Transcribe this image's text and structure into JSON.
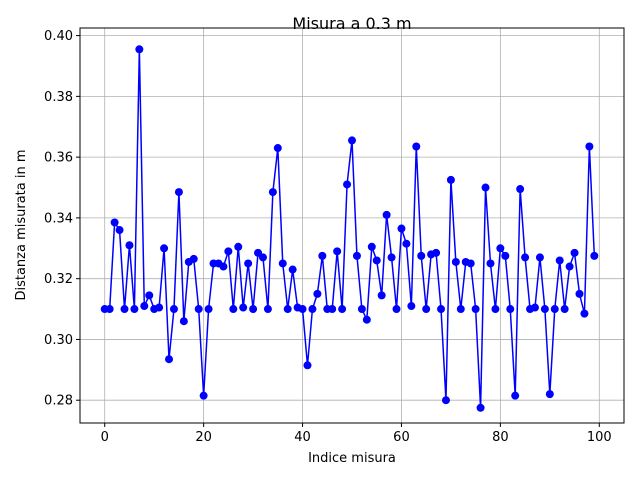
{
  "chart_data": {
    "type": "line",
    "title": "Misura a 0.3 m",
    "xlabel": "Indice misura",
    "ylabel": "Distanza misurata in m",
    "xlim": [
      -5,
      105
    ],
    "ylim": [
      0.2725,
      0.4025
    ],
    "xticks": [
      0,
      20,
      40,
      60,
      80,
      100
    ],
    "xtick_labels": [
      "0",
      "20",
      "40",
      "60",
      "80",
      "100"
    ],
    "yticks": [
      0.28,
      0.3,
      0.32,
      0.34,
      0.36,
      0.38,
      0.4
    ],
    "ytick_labels": [
      "0.28",
      "0.30",
      "0.32",
      "0.34",
      "0.36",
      "0.38",
      "0.40"
    ],
    "grid": true,
    "line_color": "#0000ff",
    "marker": "circle",
    "series": [
      {
        "x": [
          0,
          1,
          2,
          3,
          4,
          5,
          6,
          7,
          8,
          9,
          10,
          11,
          12,
          13,
          14,
          15,
          16,
          17,
          18,
          19,
          20,
          21,
          22,
          23,
          24,
          25,
          26,
          27,
          28,
          29,
          30,
          31,
          32,
          33,
          34,
          35,
          36,
          37,
          38,
          39,
          40,
          41,
          42,
          43,
          44,
          45,
          46,
          47,
          48,
          49,
          50,
          51,
          52,
          53,
          54,
          55,
          56,
          57,
          58,
          59,
          60,
          61,
          62,
          63,
          64,
          65,
          66,
          67,
          68,
          69,
          70,
          71,
          72,
          73,
          74,
          75,
          76,
          77,
          78,
          79,
          80,
          81,
          82,
          83,
          84,
          85,
          86,
          87,
          88,
          89,
          90,
          91,
          92,
          93,
          94,
          95,
          96,
          97,
          98,
          99
        ],
        "values": [
          0.31,
          0.31,
          0.3385,
          0.336,
          0.31,
          0.331,
          0.31,
          0.3955,
          0.311,
          0.3145,
          0.31,
          0.3105,
          0.33,
          0.2935,
          0.31,
          0.3485,
          0.306,
          0.3255,
          0.3265,
          0.31,
          0.2815,
          0.31,
          0.325,
          0.325,
          0.324,
          0.329,
          0.31,
          0.3305,
          0.3105,
          0.325,
          0.31,
          0.3285,
          0.327,
          0.31,
          0.3485,
          0.363,
          0.325,
          0.31,
          0.323,
          0.3105,
          0.31,
          0.2915,
          0.31,
          0.315,
          0.3275,
          0.31,
          0.31,
          0.329,
          0.31,
          0.351,
          0.3655,
          0.3275,
          0.31,
          0.3065,
          0.3305,
          0.326,
          0.3145,
          0.341,
          0.327,
          0.31,
          0.3365,
          0.3315,
          0.311,
          0.3635,
          0.3275,
          0.31,
          0.328,
          0.3285,
          0.31,
          0.28,
          0.3525,
          0.3255,
          0.31,
          0.3255,
          0.325,
          0.31,
          0.2775,
          0.35,
          0.325,
          0.31,
          0.33,
          0.3275,
          0.31,
          0.2815,
          0.3495,
          0.327,
          0.31,
          0.3105,
          0.327,
          0.31,
          0.282,
          0.31,
          0.326,
          0.31,
          0.324,
          0.3285,
          0.315,
          0.3085,
          0.3635,
          0.3275
        ]
      }
    ]
  }
}
